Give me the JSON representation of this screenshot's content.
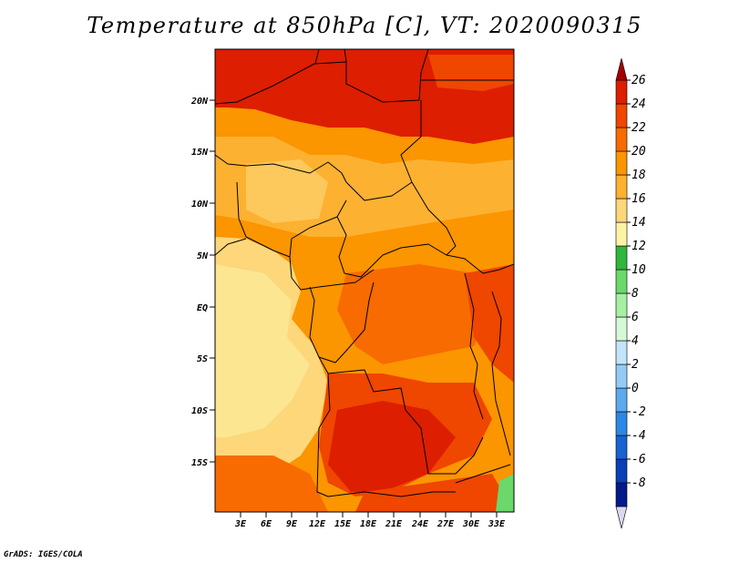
{
  "title": "Temperature at 850hPa [C], VT: 2020090315",
  "credit": "GrADS: IGES/COLA",
  "map": {
    "lat_labels": [
      "20N",
      "15N",
      "10N",
      "5N",
      "EQ",
      "5S",
      "10S",
      "15S"
    ],
    "lon_labels": [
      "3E",
      "6E",
      "9E",
      "12E",
      "15E",
      "18E",
      "21E",
      "24E",
      "27E",
      "30E",
      "33E"
    ]
  },
  "colorbar": {
    "labels": [
      "26",
      "24",
      "22",
      "20",
      "18",
      "16",
      "14",
      "12",
      "10",
      "8",
      "6",
      "4",
      "2",
      "0",
      "-2",
      "-4",
      "-6",
      "-8"
    ],
    "colors": [
      "#a50000",
      "#dd1e00",
      "#ef4600",
      "#f86b00",
      "#fb9500",
      "#fcb131",
      "#fdd77a",
      "#fdf3a4",
      "#2fb63c",
      "#6ad96a",
      "#a5f0a1",
      "#d5f9d5",
      "#c4e4fb",
      "#93cbf7",
      "#5da9f0",
      "#2c88e6",
      "#1763d4",
      "#0a3fb8",
      "#04198a",
      "#dcd6f5"
    ]
  }
}
